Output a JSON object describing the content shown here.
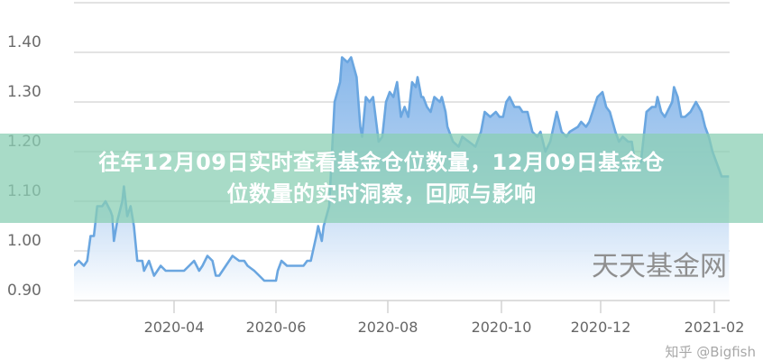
{
  "headline": {
    "line1": "往年12月09日实时查看基金仓位数量，12月09日基金仓",
    "line2": "位数量的实时洞察，回顾与影响"
  },
  "watermarks": {
    "source": "天天基金网",
    "zhihu": "知乎 @Bigfish"
  },
  "colors": {
    "line": "#6aa6e0",
    "fill_top": "#7fb2e8",
    "fill_bottom": "#ffffff",
    "banner": "#8aceb4",
    "grid": "#e3e3e3"
  },
  "chart_data": {
    "type": "area",
    "title": "",
    "xlabel": "",
    "ylabel": "",
    "ylim": [
      0.9,
      1.5
    ],
    "yticks": [
      "0.90",
      "1.00",
      "1.10",
      "1.20",
      "1.30",
      "1.40"
    ],
    "xticks": [
      "2020-04",
      "2020-06",
      "2020-08",
      "2020-10",
      "2020-12",
      "2021-02"
    ],
    "grid": true,
    "x": [
      "2020-02-01",
      "2020-02-04",
      "2020-02-07",
      "2020-02-09",
      "2020-02-11",
      "2020-02-13",
      "2020-02-15",
      "2020-02-18",
      "2020-02-20",
      "2020-02-23",
      "2020-02-24",
      "2020-02-25",
      "2020-02-27",
      "2020-03-01",
      "2020-03-02",
      "2020-03-04",
      "2020-03-06",
      "2020-03-08",
      "2020-03-10",
      "2020-03-13",
      "2020-03-14",
      "2020-03-17",
      "2020-03-20",
      "2020-03-22",
      "2020-03-24",
      "2020-03-27",
      "2020-03-30",
      "2020-04-02",
      "2020-04-07",
      "2020-04-10",
      "2020-04-13",
      "2020-04-16",
      "2020-04-18",
      "2020-04-21",
      "2020-04-24",
      "2020-04-26",
      "2020-04-28",
      "2020-05-02",
      "2020-05-04",
      "2020-05-06",
      "2020-05-10",
      "2020-05-13",
      "2020-05-15",
      "2020-05-19",
      "2020-05-22",
      "2020-05-25",
      "2020-05-29",
      "2020-06-01",
      "2020-06-02",
      "2020-06-04",
      "2020-06-07",
      "2020-06-10",
      "2020-06-13",
      "2020-06-16",
      "2020-06-18",
      "2020-06-20",
      "2020-06-23",
      "2020-06-24",
      "2020-06-26",
      "2020-06-27",
      "2020-06-30",
      "2020-07-03",
      "2020-07-06",
      "2020-07-07",
      "2020-07-10",
      "2020-07-12",
      "2020-07-15",
      "2020-07-17",
      "2020-07-18",
      "2020-07-20",
      "2020-07-22",
      "2020-07-24",
      "2020-07-26",
      "2020-07-27",
      "2020-07-29",
      "2020-07-31",
      "2020-08-02",
      "2020-08-04",
      "2020-08-06",
      "2020-08-08",
      "2020-08-10",
      "2020-08-12",
      "2020-08-14",
      "2020-08-16",
      "2020-08-17",
      "2020-08-19",
      "2020-08-20",
      "2020-08-22",
      "2020-08-24",
      "2020-08-26",
      "2020-08-29",
      "2020-08-30",
      "2020-09-01",
      "2020-09-02",
      "2020-09-05",
      "2020-09-08",
      "2020-09-10",
      "2020-09-17",
      "2020-09-20",
      "2020-09-22",
      "2020-09-25",
      "2020-09-28",
      "2020-09-30",
      "2020-10-02",
      "2020-10-04",
      "2020-10-06",
      "2020-10-09",
      "2020-10-12",
      "2020-10-14",
      "2020-10-17",
      "2020-10-20",
      "2020-10-23",
      "2020-10-25",
      "2020-10-28",
      "2020-10-31",
      "2020-11-02",
      "2020-11-04",
      "2020-11-07",
      "2020-11-10",
      "2020-11-12",
      "2020-11-17",
      "2020-11-19",
      "2020-11-22",
      "2020-11-24",
      "2020-11-26",
      "2020-11-29",
      "2020-12-02",
      "2020-12-04",
      "2020-12-06",
      "2020-12-09",
      "2020-12-11",
      "2020-12-13",
      "2020-12-16",
      "2020-12-18",
      "2020-12-20",
      "2020-12-23",
      "2020-12-26",
      "2020-12-29",
      "2020-12-31",
      "2021-01-01",
      "2021-01-03",
      "2021-01-05",
      "2021-01-09",
      "2021-01-10",
      "2021-01-12",
      "2021-01-14",
      "2021-01-16",
      "2021-01-19",
      "2021-01-22",
      "2021-01-25",
      "2021-01-27",
      "2021-01-29",
      "2021-01-31",
      "2021-02-03",
      "2021-02-05",
      "2021-02-09"
    ],
    "values": [
      0.97,
      0.98,
      0.97,
      0.98,
      1.03,
      1.03,
      1.09,
      1.09,
      1.1,
      1.08,
      1.07,
      1.02,
      1.06,
      1.1,
      1.13,
      1.07,
      1.09,
      1.05,
      0.98,
      0.98,
      0.96,
      0.98,
      0.95,
      0.96,
      0.97,
      0.96,
      0.96,
      0.96,
      0.96,
      0.97,
      0.98,
      0.96,
      0.97,
      0.99,
      0.98,
      0.95,
      0.95,
      0.97,
      0.98,
      0.99,
      0.98,
      0.98,
      0.97,
      0.96,
      0.95,
      0.94,
      0.94,
      0.94,
      0.96,
      0.98,
      0.97,
      0.97,
      0.97,
      0.97,
      0.98,
      0.98,
      1.03,
      1.05,
      1.02,
      1.05,
      1.09,
      1.3,
      1.34,
      1.39,
      1.38,
      1.39,
      1.35,
      1.25,
      1.23,
      1.31,
      1.3,
      1.31,
      1.25,
      1.22,
      1.23,
      1.3,
      1.32,
      1.31,
      1.34,
      1.27,
      1.29,
      1.27,
      1.34,
      1.33,
      1.35,
      1.31,
      1.31,
      1.29,
      1.28,
      1.31,
      1.3,
      1.31,
      1.28,
      1.25,
      1.22,
      1.21,
      1.23,
      1.21,
      1.24,
      1.28,
      1.27,
      1.28,
      1.27,
      1.27,
      1.3,
      1.31,
      1.29,
      1.29,
      1.28,
      1.28,
      1.24,
      1.23,
      1.24,
      1.2,
      1.22,
      1.25,
      1.28,
      1.24,
      1.23,
      1.24,
      1.25,
      1.26,
      1.25,
      1.26,
      1.28,
      1.31,
      1.32,
      1.29,
      1.28,
      1.24,
      1.22,
      1.23,
      1.22,
      1.22,
      1.17,
      1.18,
      1.28,
      1.29,
      1.29,
      1.31,
      1.28,
      1.27,
      1.3,
      1.33,
      1.31,
      1.27,
      1.27,
      1.28,
      1.3,
      1.28,
      1.25,
      1.23,
      1.2,
      1.17,
      1.15,
      1.15
    ]
  }
}
